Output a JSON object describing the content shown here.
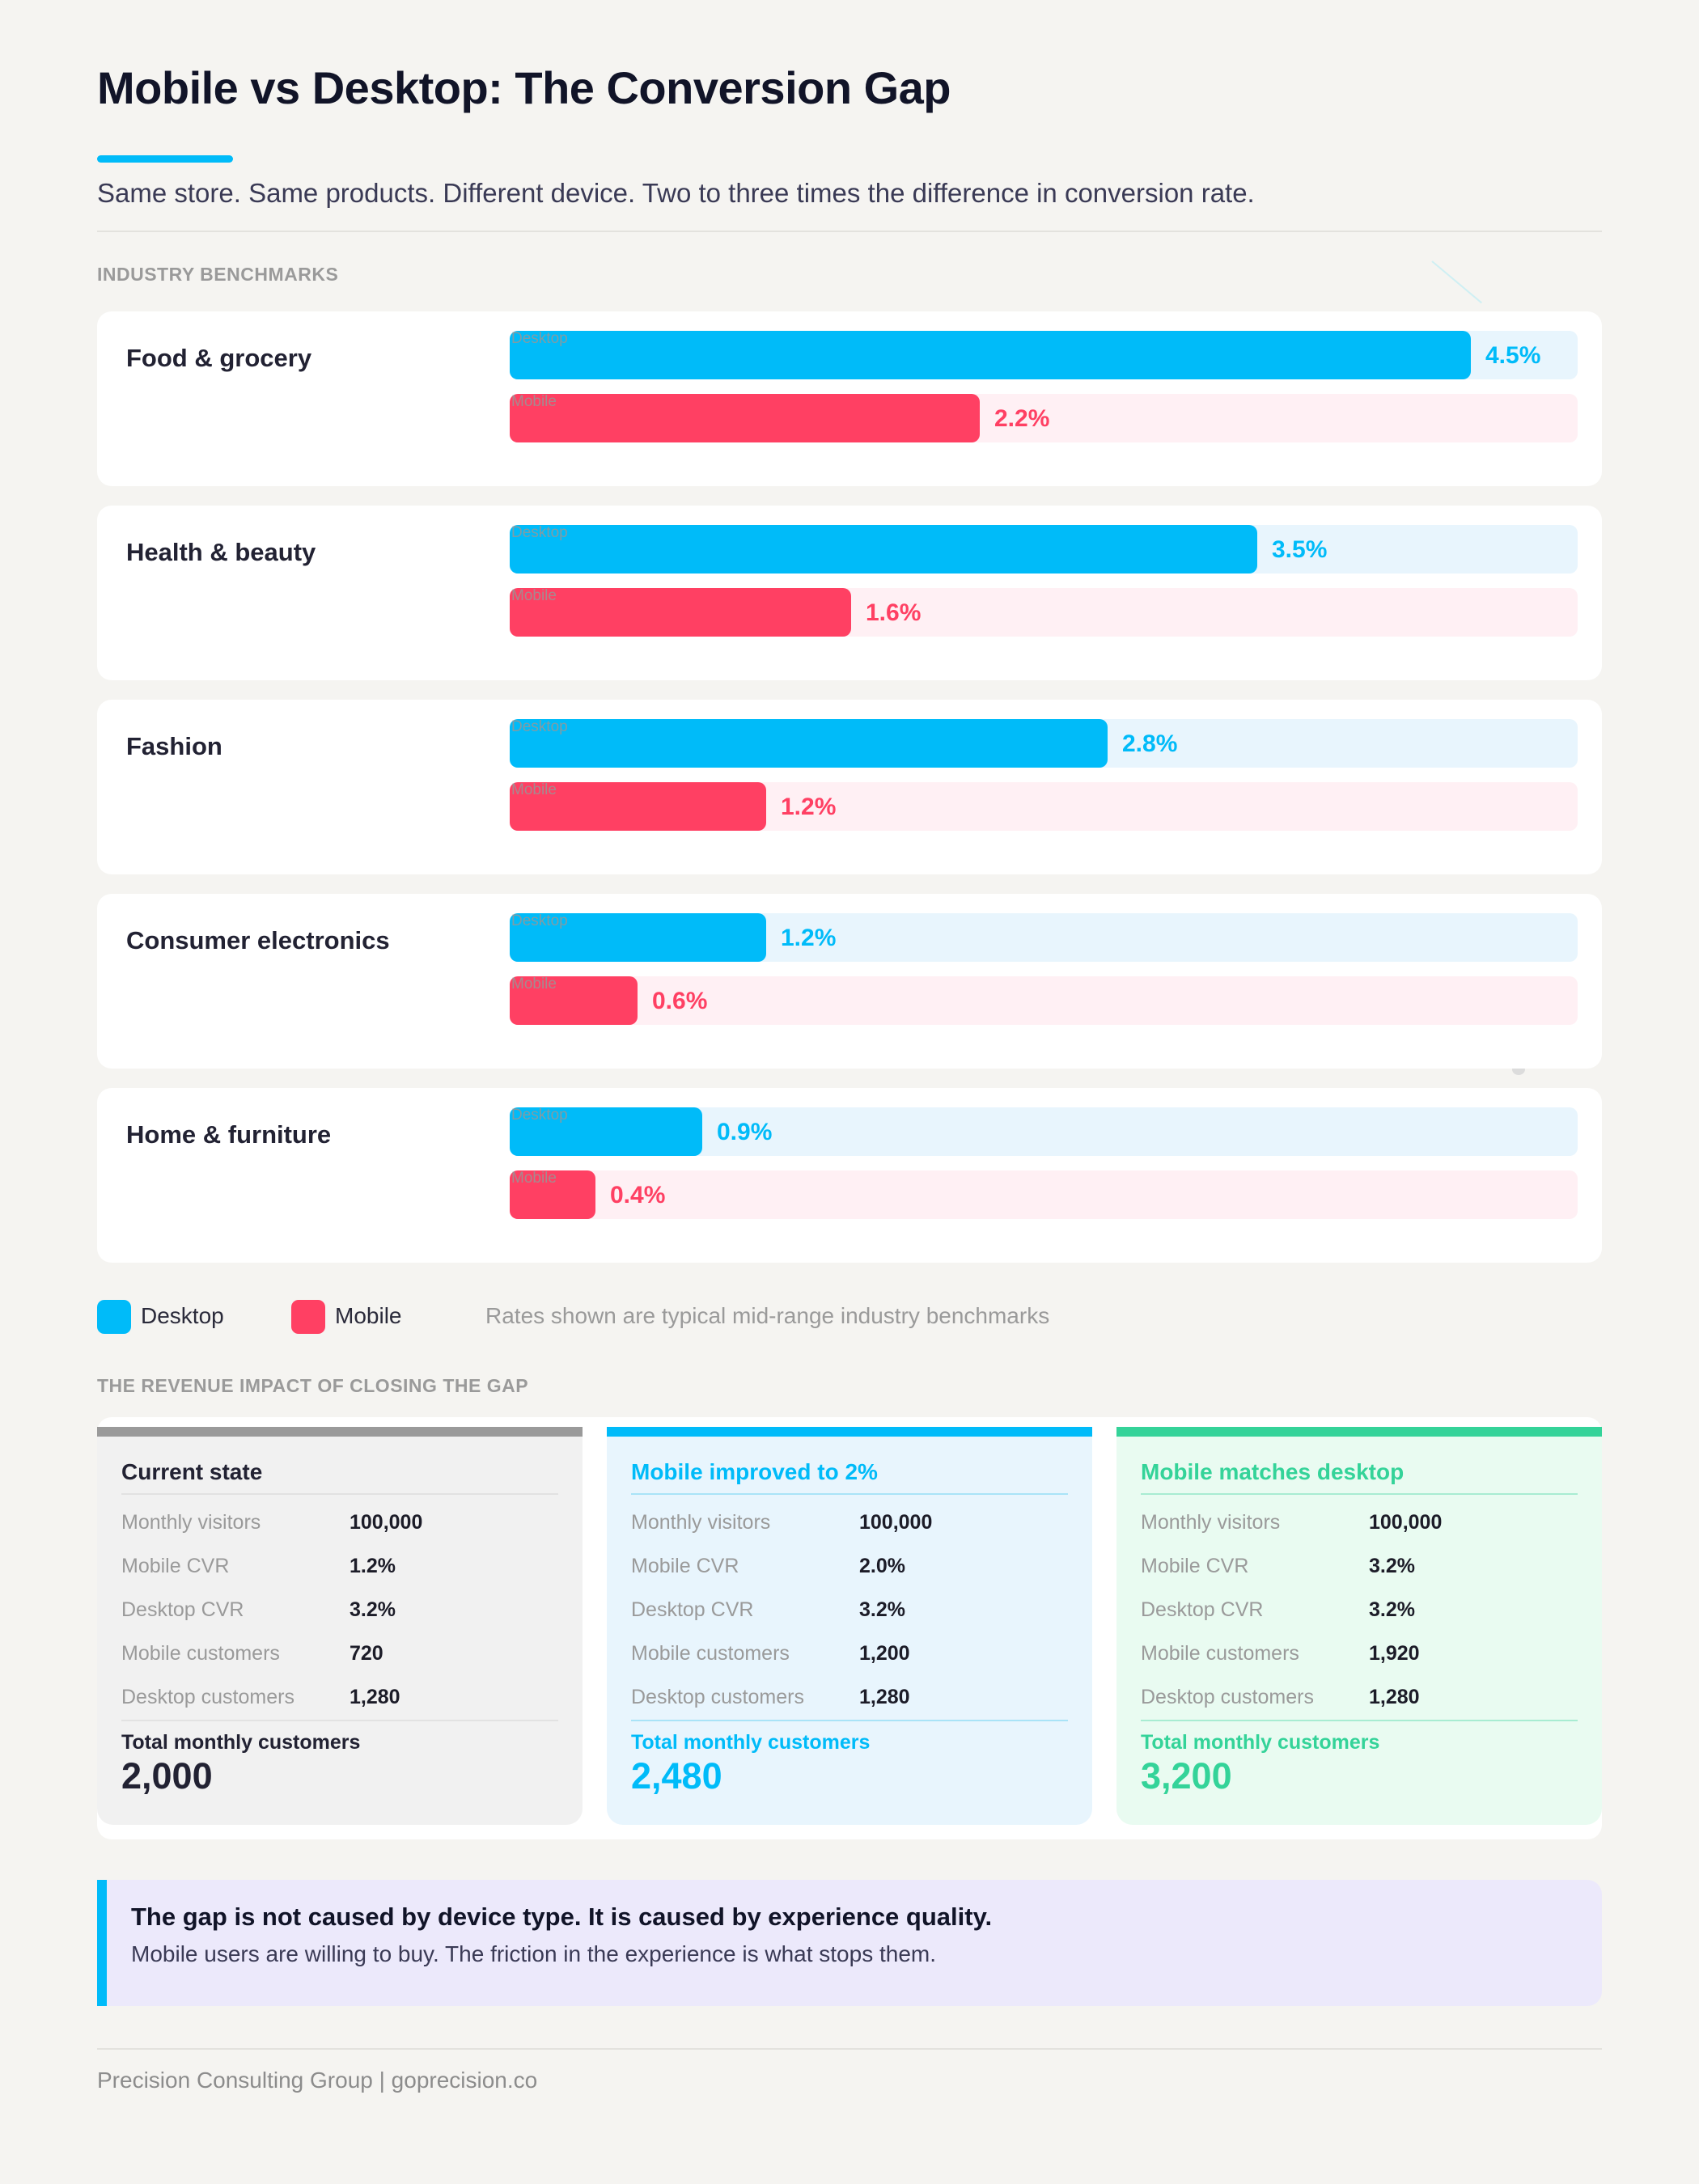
{
  "header": {
    "title": "Mobile vs Desktop: The Conversion Gap",
    "subtitle": "Same store. Same products. Different device. Two to three times the difference in conversion rate."
  },
  "sections": {
    "benchmarks_label": "INDUSTRY BENCHMARKS",
    "impact_label": "THE REVENUE IMPACT OF CLOSING THE GAP"
  },
  "colors": {
    "desktop": "#00bbf9",
    "mobile": "#ff4063",
    "current": "#9a9a9a",
    "parity": "#34d399",
    "background": "#f5f4f1"
  },
  "chart_data": {
    "type": "bar",
    "orientation": "horizontal",
    "categories": [
      "Food & grocery",
      "Health & beauty",
      "Fashion",
      "Consumer electronics",
      "Home & furniture"
    ],
    "series": [
      {
        "name": "Desktop",
        "values": [
          4.5,
          3.5,
          2.8,
          1.2,
          0.9
        ],
        "labels": [
          "4.5%",
          "3.5%",
          "2.8%",
          "1.2%",
          "0.9%"
        ],
        "bar_tag": "Desktop",
        "color": "#00bbf9"
      },
      {
        "name": "Mobile",
        "values": [
          2.2,
          1.6,
          1.2,
          0.6,
          0.4
        ],
        "labels": [
          "2.2%",
          "1.6%",
          "1.2%",
          "0.6%",
          "0.4%"
        ],
        "bar_tag": "Mobile",
        "color": "#ff4063"
      }
    ],
    "xlim": [
      0,
      5
    ],
    "unit": "%",
    "grid": false,
    "legend": "bottom-left"
  },
  "legend": {
    "desktop": "Desktop",
    "mobile": "Mobile",
    "note": "Rates shown are typical mid-range industry benchmarks"
  },
  "scenarios": [
    {
      "title": "Current state",
      "color": "#9a9a9a",
      "title_color": "#222233",
      "background": "#f1f1f1",
      "separator": "#e2e2e2",
      "rows": [
        {
          "label": "Monthly visitors",
          "value": "100,000"
        },
        {
          "label": "Mobile CVR",
          "value": "1.2%"
        },
        {
          "label": "Desktop CVR",
          "value": "3.2%"
        },
        {
          "label": "Mobile customers",
          "value": "720"
        },
        {
          "label": "Desktop customers",
          "value": "1,280"
        }
      ],
      "total_label": "Total monthly customers",
      "total_value": "2,000",
      "total_color": "#222233"
    },
    {
      "title": "Mobile improved to 2%",
      "color": "#00bbf9",
      "title_color": "#00bbf9",
      "background": "#e8f5fd",
      "separator": "#a9e3f7",
      "rows": [
        {
          "label": "Monthly visitors",
          "value": "100,000"
        },
        {
          "label": "Mobile CVR",
          "value": "2.0%"
        },
        {
          "label": "Desktop CVR",
          "value": "3.2%"
        },
        {
          "label": "Mobile customers",
          "value": "1,200"
        },
        {
          "label": "Desktop customers",
          "value": "1,280"
        }
      ],
      "total_label": "Total monthly customers",
      "total_value": "2,480",
      "total_color": "#00bbf9"
    },
    {
      "title": "Mobile matches desktop",
      "color": "#34d399",
      "title_color": "#34d399",
      "background": "#e9fbf1",
      "separator": "#a8ecd2",
      "rows": [
        {
          "label": "Monthly visitors",
          "value": "100,000"
        },
        {
          "label": "Mobile CVR",
          "value": "3.2%"
        },
        {
          "label": "Desktop CVR",
          "value": "3.2%"
        },
        {
          "label": "Mobile customers",
          "value": "1,920"
        },
        {
          "label": "Desktop customers",
          "value": "1,280"
        }
      ],
      "total_label": "Total monthly customers",
      "total_value": "3,200",
      "total_color": "#34d399"
    }
  ],
  "callout": {
    "headline": "The gap is not caused by device type. It is caused by experience quality.",
    "body": "Mobile users are willing to buy. The friction in the experience is what stops them."
  },
  "footer": {
    "text": "Precision Consulting Group | goprecision.co"
  }
}
